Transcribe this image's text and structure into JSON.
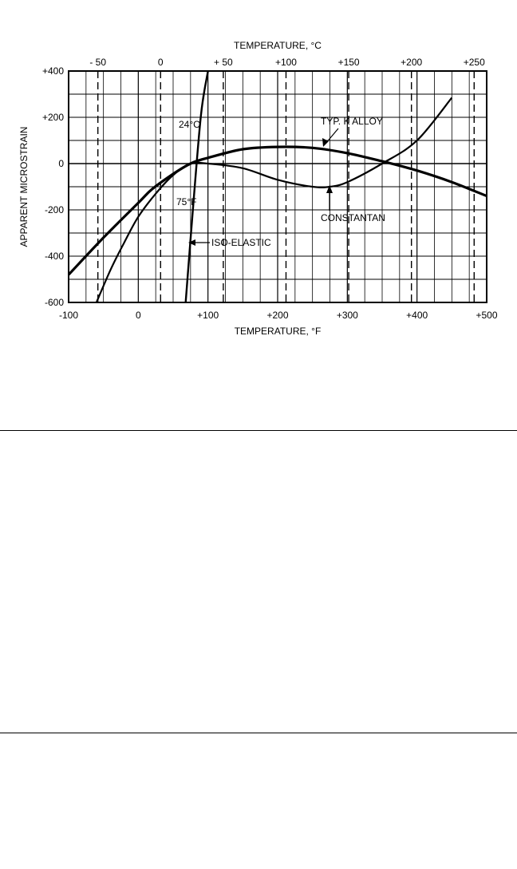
{
  "chart_data": {
    "type": "line",
    "x_axis": {
      "label": "TEMPERATURE, °F",
      "range": [
        -100,
        500
      ],
      "ticks": [
        -100,
        0,
        100,
        200,
        300,
        400,
        500
      ],
      "tick_labels": [
        "-100",
        "0",
        "+100",
        "+200",
        "+300",
        "+400",
        "+500"
      ]
    },
    "x2_axis": {
      "label": "TEMPERATURE, °C",
      "ticks": [
        -50,
        0,
        50,
        100,
        150,
        200,
        250
      ],
      "tick_labels": [
        "- 50",
        "0",
        "+ 50",
        "+100",
        "+150",
        "+200",
        "+250"
      ]
    },
    "y_axis": {
      "label": "APPARENT MICROSTRAIN",
      "range": [
        -600,
        400
      ],
      "ticks": [
        -600,
        -400,
        -200,
        0,
        200,
        400
      ],
      "tick_labels": [
        "-600",
        "-400",
        "-200",
        "0",
        "+200",
        "+400"
      ]
    },
    "grid": true,
    "series": [
      {
        "name": "TYP. K ALLOY",
        "x": [
          -100,
          -50,
          0,
          20,
          50,
          75,
          100,
          150,
          200,
          250,
          300,
          350,
          400,
          450,
          500
        ],
        "y": [
          -480,
          -320,
          -170,
          -110,
          -45,
          0,
          25,
          62,
          72,
          68,
          45,
          10,
          -30,
          -80,
          -140
        ]
      },
      {
        "name": "CONSTANTAN",
        "x": [
          -60,
          -40,
          -20,
          0,
          25,
          50,
          75,
          100,
          150,
          200,
          250,
          275,
          300,
          350,
          400,
          450
        ],
        "y": [
          -600,
          -460,
          -340,
          -230,
          -130,
          -50,
          0,
          0,
          -20,
          -70,
          -100,
          -100,
          -80,
          0,
          100,
          285
        ]
      },
      {
        "name": "ISO-ELASTIC",
        "x": [
          68,
          78,
          90,
          100
        ],
        "y": [
          -600,
          -210,
          210,
          400
        ]
      }
    ],
    "annotations": [
      "24°C",
      "75°F",
      "TYP. K ALLOY",
      "CONSTANTAN",
      "ISO-ELASTIC"
    ]
  }
}
